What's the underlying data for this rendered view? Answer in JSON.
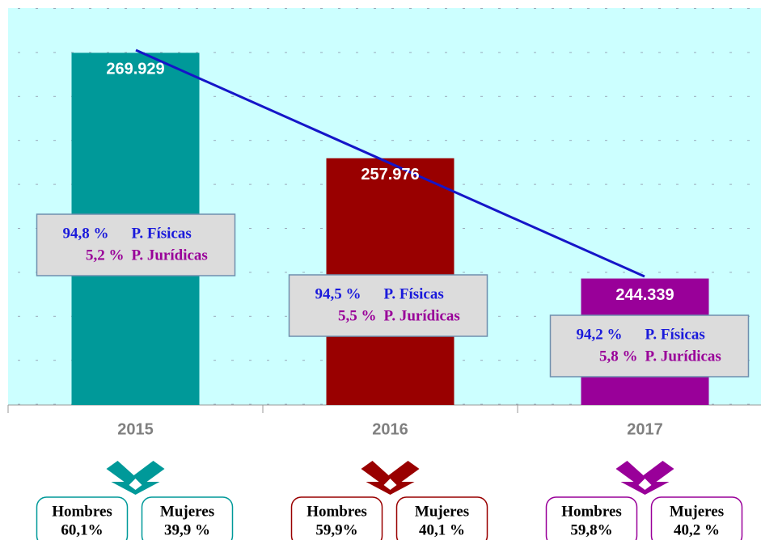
{
  "chart_data": {
    "type": "bar",
    "categories": [
      "2015",
      "2016",
      "2017"
    ],
    "values": [
      269929,
      257976,
      244339
    ],
    "value_labels": [
      "269.929",
      "257.976",
      "244.339"
    ],
    "colors": [
      "#009999",
      "#990000",
      "#990099"
    ],
    "ylim": [
      230000,
      275000
    ],
    "annotations": [
      {
        "fisicas_pct": "94,8 %",
        "fisicas_label": "P. Físicas",
        "juridicas_pct": "5,2 %",
        "juridicas_label": "P. Jurídicas",
        "hombres_label": "Hombres",
        "hombres_pct": "60,1%",
        "mujeres_label": "Mujeres",
        "mujeres_pct": "39,9 %"
      },
      {
        "fisicas_pct": "94,5 %",
        "fisicas_label": "P. Físicas",
        "juridicas_pct": "5,5 %",
        "juridicas_label": "P. Jurídicas",
        "hombres_label": "Hombres",
        "hombres_pct": "59,9%",
        "mujeres_label": "Mujeres",
        "mujeres_pct": "40,1 %"
      },
      {
        "fisicas_pct": "94,2 %",
        "fisicas_label": "P. Físicas",
        "juridicas_pct": "5,8 %",
        "juridicas_label": "P. Jurídicas",
        "hombres_label": "Hombres",
        "hombres_pct": "59,8%",
        "mujeres_label": "Mujeres",
        "mujeres_pct": "40,2 %"
      }
    ]
  }
}
